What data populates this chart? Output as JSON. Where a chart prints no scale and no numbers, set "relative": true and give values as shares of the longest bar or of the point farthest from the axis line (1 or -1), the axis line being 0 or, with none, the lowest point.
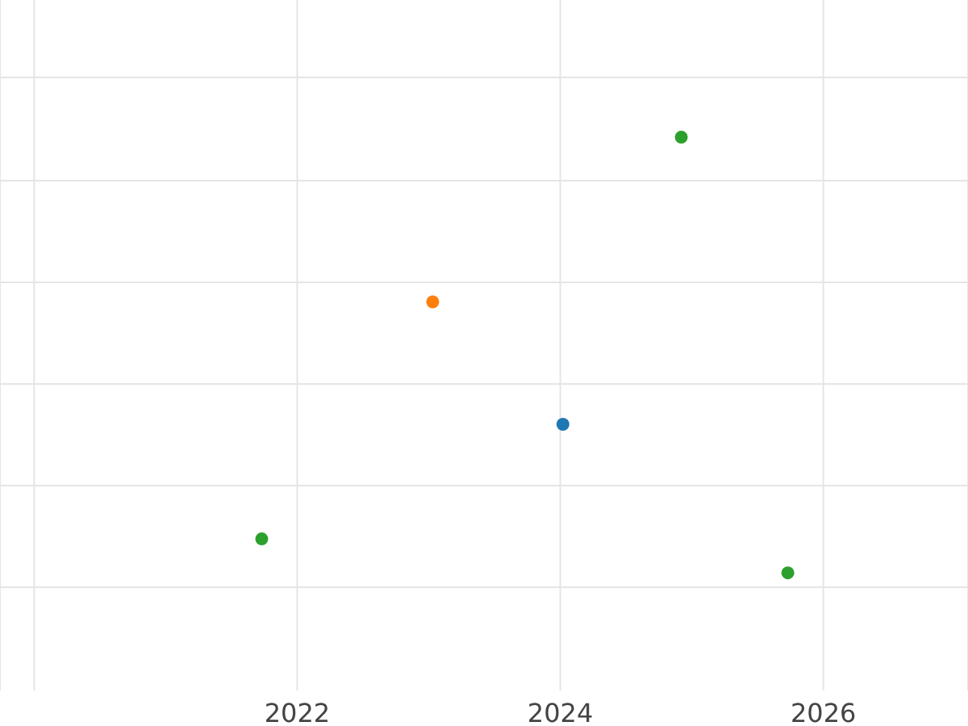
{
  "chart_data": {
    "type": "scatter",
    "relative": true,
    "xlim": [
      2019.74,
      2027.1
    ],
    "xticks": [
      {
        "value": 2020,
        "label": null
      },
      2022,
      2024,
      2026
    ],
    "grid": true,
    "marker": "circle",
    "series": [
      {
        "color": "#1f77b4",
        "x": [
          2024.02
        ],
        "values": [
          0.341
        ]
      },
      {
        "color": "#ff7f0e",
        "x": [
          2023.03
        ],
        "values": [
          0.622
        ]
      },
      {
        "color": "#2ca02c",
        "x": [
          2021.73,
          2024.92,
          2025.73
        ],
        "values": [
          0.078,
          1,
          0
        ]
      }
    ]
  }
}
